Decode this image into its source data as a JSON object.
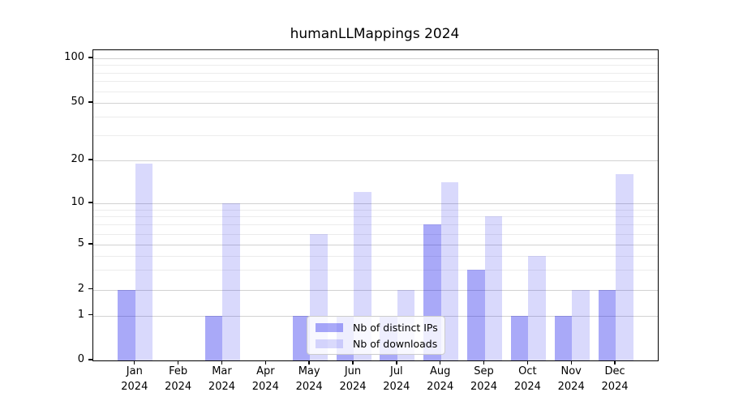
{
  "chart_data": {
    "type": "bar",
    "title": "humanLLMappings 2024",
    "xlabel": "",
    "ylabel": "",
    "yscale": "symlog",
    "ylim": [
      0,
      113
    ],
    "grid": "horizontal",
    "yticks_major": [
      0,
      1,
      2,
      5,
      10,
      20,
      50,
      100
    ],
    "yticks_minor": [
      3,
      4,
      6,
      7,
      8,
      9,
      30,
      40,
      60,
      70,
      80,
      90
    ],
    "categories": [
      "Jan 2024",
      "Feb 2024",
      "Mar 2024",
      "Apr 2024",
      "May 2024",
      "Jun 2024",
      "Jul 2024",
      "Aug 2024",
      "Sep 2024",
      "Oct 2024",
      "Nov 2024",
      "Dec 2024"
    ],
    "series": [
      {
        "name": "Nb of distinct IPs",
        "color": "#0a0aeb",
        "alpha": 0.35,
        "values": [
          2,
          0,
          1,
          0,
          1,
          1,
          1,
          7,
          3,
          1,
          1,
          2
        ]
      },
      {
        "name": "Nb of downloads",
        "color": "#0a0aeb",
        "alpha": 0.155,
        "values": [
          19,
          0,
          10,
          0,
          6,
          12,
          2,
          14,
          8,
          4,
          2,
          16
        ]
      }
    ],
    "legend_position": "lower center"
  },
  "colors": {
    "grid_major": "#d2d2d2",
    "grid_minor": "#ececec",
    "axis": "#000000",
    "text": "#000000"
  }
}
